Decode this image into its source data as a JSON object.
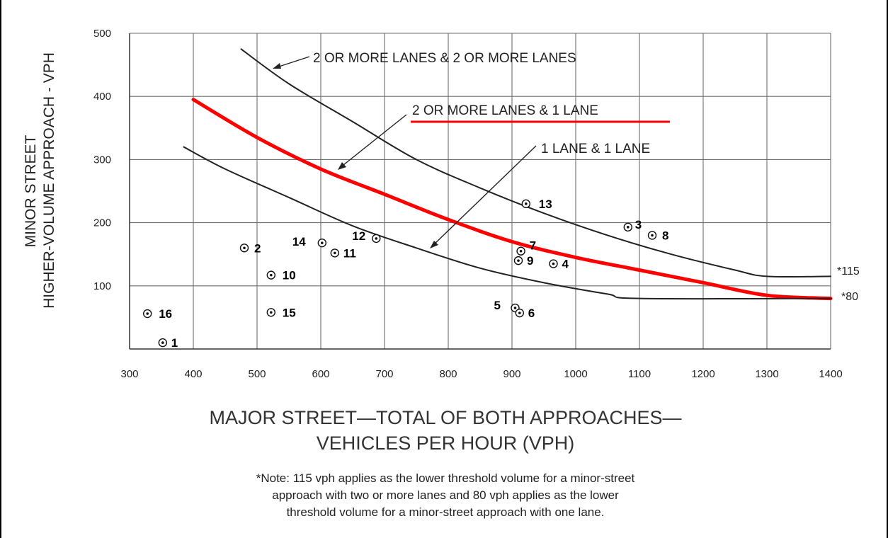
{
  "chart_data": {
    "type": "line",
    "ylabel_lines": [
      "MINOR STREET",
      "HIGHER-VOLUME APPROACH - VPH"
    ],
    "xlabel_lines": [
      "MAJOR STREET—TOTAL OF BOTH APPROACHES—",
      "VEHICLES PER HOUR (VPH)"
    ],
    "xlim": [
      300,
      1400
    ],
    "ylim": [
      0,
      500
    ],
    "x_ticks": [
      "300",
      "400",
      "500",
      "600",
      "700",
      "800",
      "900",
      "1000",
      "1100",
      "1200",
      "1300",
      "1400"
    ],
    "y_ticks": [
      "100",
      "200",
      "300",
      "400",
      "500"
    ],
    "grid": true,
    "series": [
      {
        "name": "2 OR MORE LANES & 2 OR MORE LANES",
        "color": "#222222",
        "x": [
          475,
          550,
          650,
          750,
          850,
          950,
          1050,
          1150,
          1250,
          1300,
          1400
        ],
        "y": [
          475,
          420,
          360,
          300,
          255,
          215,
          180,
          150,
          125,
          115,
          115
        ]
      },
      {
        "name": "2 OR MORE LANES & 1 LANE",
        "color": "#ff0000",
        "x": [
          400,
          500,
          600,
          700,
          800,
          900,
          1000,
          1100,
          1200,
          1300,
          1400
        ],
        "y": [
          395,
          335,
          285,
          245,
          205,
          170,
          145,
          125,
          105,
          85,
          80
        ]
      },
      {
        "name": "1 LANE & 1 LANE",
        "color": "#222222",
        "x": [
          385,
          450,
          550,
          650,
          750,
          850,
          950,
          1050,
          1100,
          1400
        ],
        "y": [
          320,
          285,
          240,
          195,
          160,
          128,
          105,
          87,
          80,
          80
        ]
      }
    ],
    "points": [
      {
        "label": "1",
        "x": 352,
        "y": 10
      },
      {
        "label": "2",
        "x": 480,
        "y": 160
      },
      {
        "label": "3",
        "x": 1082,
        "y": 193
      },
      {
        "label": "4",
        "x": 965,
        "y": 135
      },
      {
        "label": "5",
        "x": 905,
        "y": 65
      },
      {
        "label": "6",
        "x": 912,
        "y": 57
      },
      {
        "label": "7",
        "x": 914,
        "y": 155
      },
      {
        "label": "8",
        "x": 1120,
        "y": 180
      },
      {
        "label": "9",
        "x": 910,
        "y": 140
      },
      {
        "label": "10",
        "x": 522,
        "y": 117
      },
      {
        "label": "11",
        "x": 622,
        "y": 152
      },
      {
        "label": "12",
        "x": 687,
        "y": 175
      },
      {
        "label": "13",
        "x": 922,
        "y": 230
      },
      {
        "label": "14",
        "x": 602,
        "y": 168
      },
      {
        "label": "15",
        "x": 522,
        "y": 58
      },
      {
        "label": "16",
        "x": 328,
        "y": 56
      }
    ],
    "threshold_labels": [
      "*115",
      "*80"
    ],
    "note_lines": [
      "*Note: 115 vph applies as the lower threshold volume for a minor-street",
      "approach with two or more lanes and 80 vph applies as the lower",
      "threshold volume for a minor-street approach with one lane."
    ]
  }
}
